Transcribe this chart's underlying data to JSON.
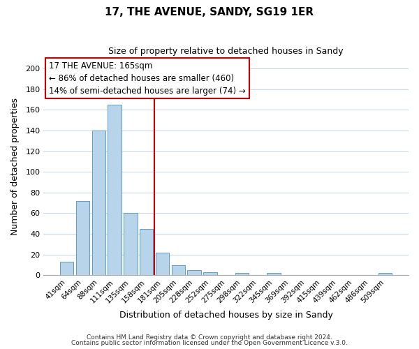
{
  "title": "17, THE AVENUE, SANDY, SG19 1ER",
  "subtitle": "Size of property relative to detached houses in Sandy",
  "xlabel": "Distribution of detached houses by size in Sandy",
  "ylabel": "Number of detached properties",
  "bar_labels": [
    "41sqm",
    "64sqm",
    "88sqm",
    "111sqm",
    "135sqm",
    "158sqm",
    "181sqm",
    "205sqm",
    "228sqm",
    "252sqm",
    "275sqm",
    "298sqm",
    "322sqm",
    "345sqm",
    "369sqm",
    "392sqm",
    "415sqm",
    "439sqm",
    "462sqm",
    "486sqm",
    "509sqm"
  ],
  "bar_values": [
    13,
    72,
    140,
    165,
    60,
    45,
    22,
    10,
    5,
    3,
    0,
    2,
    0,
    2,
    0,
    0,
    0,
    0,
    0,
    0,
    2
  ],
  "bar_color": "#b8d4ea",
  "bar_edge_color": "#5a9ec8",
  "reference_line_x": 5.5,
  "reference_line_color": "#cc0000",
  "ylim": [
    0,
    210
  ],
  "yticks": [
    0,
    20,
    40,
    60,
    80,
    100,
    120,
    140,
    160,
    180,
    200
  ],
  "annotation_title": "17 THE AVENUE: 165sqm",
  "annotation_line1": "← 86% of detached houses are smaller (460)",
  "annotation_line2": "14% of semi-detached houses are larger (74) →",
  "footer_line1": "Contains HM Land Registry data © Crown copyright and database right 2024.",
  "footer_line2": "Contains public sector information licensed under the Open Government Licence v.3.0.",
  "background_color": "#ffffff",
  "grid_color": "#c8d8e8"
}
